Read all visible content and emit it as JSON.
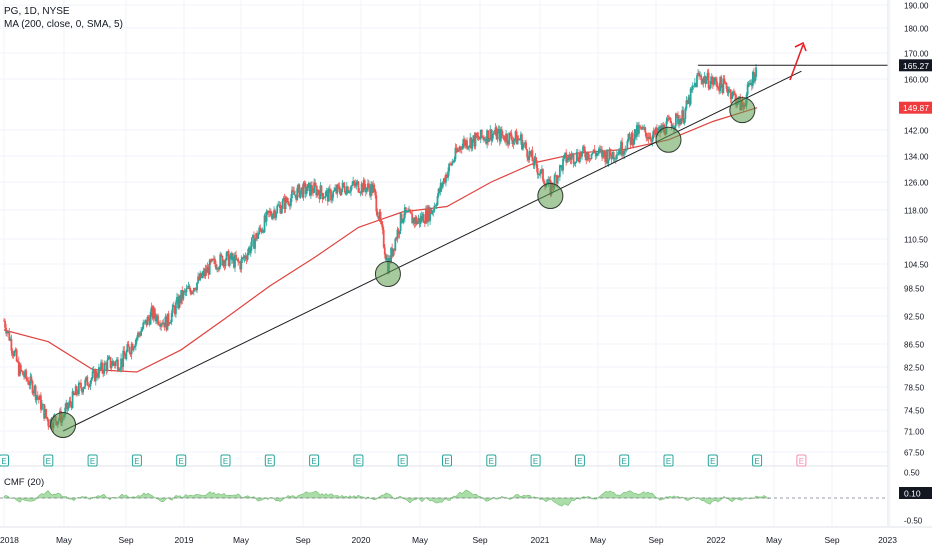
{
  "header": {
    "symbol_line": "PG, 1D, NYSE",
    "indicator_line": "MA (200, close, 0, SMA, 5)"
  },
  "cmf_label": "CMF (20)",
  "colors": {
    "up": "#26a69a",
    "down": "#ef5350",
    "ma": "#e0443f",
    "cmf_fill": "#8fd18c",
    "trendline": "#1f1f1f",
    "touch_circle": "#5c9c4e",
    "earnings": "#26a69a",
    "earnings_future": "#f48fb1",
    "price_label_bg": "#131722",
    "ma_label_bg": "#ef3b3e"
  },
  "chart_data": {
    "type": "candlestick",
    "x_tick_labels": [
      "2018",
      "May",
      "Sep",
      "2019",
      "May",
      "Sep",
      "2020",
      "May",
      "Sep",
      "2021",
      "May",
      "Sep",
      "2022",
      "May",
      "Sep",
      "2023"
    ],
    "y_tick_labels": [
      "190.00",
      "180.00",
      "170.00",
      "160.00",
      "142.00",
      "134.00",
      "126.00",
      "118.00",
      "110.50",
      "104.50",
      "98.50",
      "92.50",
      "86.50",
      "82.50",
      "78.50",
      "74.50",
      "71.00",
      "67.50"
    ],
    "price_markers": [
      {
        "label": "165.27",
        "value": 165.27,
        "role": "last price"
      },
      {
        "label": "149.87",
        "value": 149.87,
        "role": "MA 200"
      }
    ],
    "close_series": [
      {
        "date": "2018-01",
        "close": 91.5
      },
      {
        "date": "2018-02",
        "close": 82.0
      },
      {
        "date": "2018-03",
        "close": 78.5
      },
      {
        "date": "2018-04",
        "close": 72.5
      },
      {
        "date": "2018-05",
        "close": 73.5
      },
      {
        "date": "2018-06",
        "close": 78.0
      },
      {
        "date": "2018-07",
        "close": 80.5
      },
      {
        "date": "2018-08",
        "close": 83.0
      },
      {
        "date": "2018-09",
        "close": 83.5
      },
      {
        "date": "2018-10",
        "close": 88.0
      },
      {
        "date": "2018-11",
        "close": 93.0
      },
      {
        "date": "2018-12",
        "close": 91.0
      },
      {
        "date": "2019-01",
        "close": 96.5
      },
      {
        "date": "2019-02",
        "close": 99.5
      },
      {
        "date": "2019-03",
        "close": 104.0
      },
      {
        "date": "2019-04",
        "close": 106.0
      },
      {
        "date": "2019-05",
        "close": 104.5
      },
      {
        "date": "2019-06",
        "close": 110.5
      },
      {
        "date": "2019-07",
        "close": 117.0
      },
      {
        "date": "2019-08",
        "close": 120.0
      },
      {
        "date": "2019-09",
        "close": 123.5
      },
      {
        "date": "2019-10",
        "close": 124.0
      },
      {
        "date": "2019-11",
        "close": 122.0
      },
      {
        "date": "2019-12",
        "close": 124.5
      },
      {
        "date": "2020-01",
        "close": 125.0
      },
      {
        "date": "2020-02",
        "close": 124.0
      },
      {
        "date": "2020-03",
        "close": 104.0
      },
      {
        "date": "2020-04",
        "close": 117.0
      },
      {
        "date": "2020-05",
        "close": 115.0
      },
      {
        "date": "2020-06",
        "close": 118.0
      },
      {
        "date": "2020-07",
        "close": 129.0
      },
      {
        "date": "2020-08",
        "close": 138.0
      },
      {
        "date": "2020-09",
        "close": 139.0
      },
      {
        "date": "2020-10",
        "close": 141.0
      },
      {
        "date": "2020-11",
        "close": 140.0
      },
      {
        "date": "2020-12",
        "close": 139.0
      },
      {
        "date": "2021-01",
        "close": 131.0
      },
      {
        "date": "2021-02",
        "close": 124.0
      },
      {
        "date": "2021-03",
        "close": 133.0
      },
      {
        "date": "2021-04",
        "close": 134.5
      },
      {
        "date": "2021-05",
        "close": 135.0
      },
      {
        "date": "2021-06",
        "close": 134.0
      },
      {
        "date": "2021-07",
        "close": 137.0
      },
      {
        "date": "2021-08",
        "close": 142.0
      },
      {
        "date": "2021-09",
        "close": 140.0
      },
      {
        "date": "2021-10",
        "close": 144.0
      },
      {
        "date": "2021-11",
        "close": 147.0
      },
      {
        "date": "2021-12",
        "close": 161.0
      },
      {
        "date": "2022-01",
        "close": 159.0
      },
      {
        "date": "2022-02",
        "close": 157.0
      },
      {
        "date": "2022-03",
        "close": 150.0
      },
      {
        "date": "2022-04",
        "close": 165.27
      }
    ],
    "ma200_series": [
      {
        "date": "2018-01",
        "value": 89.5
      },
      {
        "date": "2018-04",
        "value": 87.0
      },
      {
        "date": "2018-07",
        "value": 82.0
      },
      {
        "date": "2018-10",
        "value": 81.5
      },
      {
        "date": "2019-01",
        "value": 85.5
      },
      {
        "date": "2019-04",
        "value": 92.0
      },
      {
        "date": "2019-07",
        "value": 99.0
      },
      {
        "date": "2019-10",
        "value": 106.0
      },
      {
        "date": "2020-01",
        "value": 113.5
      },
      {
        "date": "2020-04",
        "value": 117.5
      },
      {
        "date": "2020-07",
        "value": 119.0
      },
      {
        "date": "2020-10",
        "value": 126.0
      },
      {
        "date": "2021-01",
        "value": 132.0
      },
      {
        "date": "2021-04",
        "value": 135.0
      },
      {
        "date": "2021-07",
        "value": 136.0
      },
      {
        "date": "2021-10",
        "value": 139.0
      },
      {
        "date": "2022-01",
        "value": 145.0
      },
      {
        "date": "2022-04",
        "value": 149.87
      }
    ],
    "trendline": {
      "from": {
        "date": "2018-05",
        "value": 71.0
      },
      "to": {
        "date": "2022-07",
        "value": 163.0
      }
    },
    "resistance_line": {
      "from": {
        "date": "2021-12",
        "value": 165.27
      },
      "to": {
        "date": "2023-01",
        "value": 165.27
      }
    },
    "touch_points": [
      {
        "date": "2018-05",
        "value": 72.0
      },
      {
        "date": "2020-03",
        "value": 102.0
      },
      {
        "date": "2021-02",
        "value": 122.0
      },
      {
        "date": "2021-10",
        "value": 139.0
      },
      {
        "date": "2022-03",
        "value": 149.0
      }
    ],
    "earnings_dates": [
      "2018-01",
      "2018-04",
      "2018-07",
      "2018-10",
      "2019-01",
      "2019-04",
      "2019-07",
      "2019-10",
      "2020-01",
      "2020-04",
      "2020-07",
      "2020-10",
      "2021-01",
      "2021-04",
      "2021-07",
      "2021-10",
      "2022-01",
      "2022-04"
    ],
    "upcoming_earnings": [
      "2022-07"
    ],
    "cmf": {
      "name": "CMF (20)",
      "y_tick_labels": [
        "0.50",
        "0.10",
        "-0.50"
      ],
      "last_value": 0.1
    }
  }
}
